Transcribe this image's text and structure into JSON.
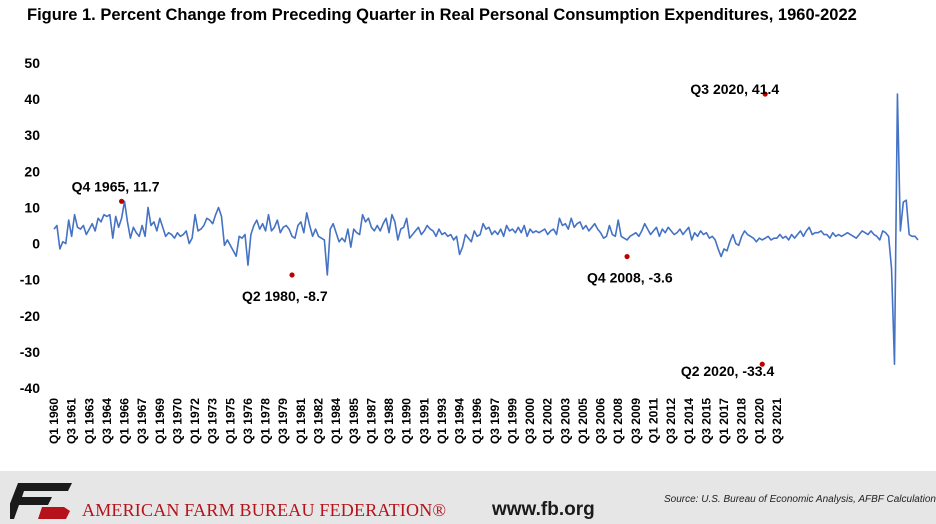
{
  "chart_data": {
    "type": "line",
    "title": "Figure 1. Percent Change from Preceding Quarter in Real Personal Consumption Expenditures, 1960-2022",
    "xlabel": "",
    "ylabel": "",
    "ylim": [
      -40,
      50
    ],
    "yticks": [
      50,
      40,
      30,
      20,
      10,
      0,
      -10,
      -20,
      -30,
      -40
    ],
    "grid": false,
    "legend": "none",
    "x_start": "Q1 1960",
    "x_end": "Q2 2022",
    "x_tick_labels": [
      "Q1 1960",
      "Q3 1961",
      "Q1 1963",
      "Q3 1964",
      "Q1 1966",
      "Q3 1967",
      "Q1 1969",
      "Q3 1970",
      "Q1 1972",
      "Q3 1973",
      "Q1 1975",
      "Q3 1976",
      "Q1 1978",
      "Q3 1979",
      "Q1 1981",
      "Q3 1982",
      "Q1 1984",
      "Q3 1985",
      "Q1 1987",
      "Q3 1988",
      "Q1 1990",
      "Q3 1991",
      "Q1 1993",
      "Q3 1994",
      "Q1 1996",
      "Q3 1997",
      "Q1 1999",
      "Q3 2000",
      "Q1 2002",
      "Q3 2003",
      "Q1 2005",
      "Q3 2006",
      "Q1 2008",
      "Q3 2009",
      "Q1 2011",
      "Q3 2012",
      "Q1 2014",
      "Q3 2015",
      "Q1 2017",
      "Q3 2018",
      "Q1 2020",
      "Q3 2021"
    ],
    "series": [
      {
        "color": "#4472c4",
        "values": [
          4.0,
          5.0,
          -1.5,
          0.5,
          0.0,
          6.5,
          2.0,
          8.0,
          4.5,
          4.0,
          5.0,
          2.5,
          4.0,
          5.5,
          3.5,
          7.0,
          6.0,
          8.0,
          7.5,
          8.0,
          1.5,
          7.5,
          4.5,
          7.0,
          11.7,
          6.0,
          1.5,
          4.5,
          3.0,
          2.0,
          5.0,
          2.0,
          10.0,
          5.0,
          6.0,
          3.5,
          7.0,
          4.5,
          2.0,
          3.0,
          2.5,
          1.5,
          3.0,
          2.0,
          2.5,
          3.5,
          0.0,
          1.5,
          8.0,
          3.5,
          4.0,
          5.0,
          7.0,
          6.5,
          5.5,
          8.0,
          10.0,
          7.5,
          -0.5,
          1.0,
          -0.5,
          -2.0,
          -3.5,
          2.0,
          1.5,
          2.5,
          -6.0,
          2.5,
          5.0,
          6.5,
          4.0,
          5.5,
          3.5,
          8.0,
          3.5,
          4.5,
          6.5,
          3.0,
          4.5,
          5.0,
          4.0,
          2.0,
          1.5,
          5.0,
          6.0,
          3.0,
          8.5,
          5.0,
          2.0,
          4.0,
          2.0,
          1.5,
          1.0,
          -8.7,
          4.0,
          5.5,
          3.0,
          0.5,
          1.5,
          0.5,
          4.0,
          -1.0,
          4.0,
          3.0,
          2.5,
          8.0,
          6.0,
          7.0,
          4.5,
          3.5,
          5.0,
          3.5,
          5.5,
          7.0,
          3.0,
          8.0,
          6.0,
          1.0,
          4.0,
          4.5,
          7.0,
          1.5,
          2.5,
          3.5,
          4.5,
          2.5,
          3.5,
          5.0,
          4.0,
          3.5,
          2.0,
          4.0,
          2.5,
          3.0,
          2.0,
          2.5,
          1.0,
          2.0,
          -3.0,
          -1.0,
          2.5,
          1.5,
          0.5,
          3.5,
          2.0,
          2.5,
          5.5,
          4.0,
          4.5,
          2.5,
          3.5,
          2.5,
          4.0,
          2.0,
          5.0,
          3.5,
          4.0,
          3.0,
          4.5,
          3.0,
          5.0,
          2.0,
          4.0,
          3.0,
          3.5,
          3.0,
          3.5,
          4.0,
          2.5,
          3.5,
          4.0,
          2.5,
          7.0,
          5.0,
          5.5,
          4.0,
          7.0,
          4.5,
          5.5,
          6.0,
          4.0,
          5.0,
          3.5,
          4.5,
          5.5,
          4.0,
          3.0,
          1.5,
          2.0,
          5.0,
          2.5,
          2.0,
          6.5,
          2.0,
          1.5,
          1.0,
          2.0,
          2.5,
          3.0,
          2.0,
          3.5,
          5.5,
          4.0,
          2.5,
          3.5,
          4.5,
          2.0,
          4.0,
          3.0,
          4.5,
          3.5,
          2.5,
          3.0,
          4.0,
          2.5,
          3.5,
          4.5,
          1.0,
          3.0,
          2.0,
          3.5,
          2.5,
          3.0,
          1.5,
          2.0,
          1.0,
          -1.5,
          -3.6,
          -1.5,
          -2.0,
          0.5,
          2.5,
          0.0,
          -0.5,
          2.0,
          3.5,
          2.5,
          2.0,
          1.5,
          0.5,
          1.5,
          1.0,
          1.5,
          2.0,
          1.0,
          1.5,
          1.5,
          2.5,
          1.5,
          2.0,
          1.0,
          2.5,
          1.5,
          2.5,
          3.5,
          2.0,
          3.5,
          4.5,
          2.5,
          3.0,
          3.0,
          3.5,
          2.5,
          2.5,
          1.5,
          3.0,
          2.0,
          2.5,
          2.0,
          2.5,
          3.0,
          2.5,
          2.0,
          1.5,
          2.5,
          3.5,
          3.0,
          2.5,
          3.5,
          2.5,
          2.0,
          1.0,
          3.5,
          3.0,
          2.0,
          -7.0,
          -33.4,
          41.4,
          3.5,
          11.5,
          12.0,
          2.5,
          2.0,
          2.0,
          1.0
        ]
      }
    ],
    "annotations": [
      {
        "label": "Q4 1965, 11.7",
        "x_index": 23,
        "y": 11.7
      },
      {
        "label": "Q2 1980, -8.7",
        "x_index": 81,
        "y": -8.7
      },
      {
        "label": "Q4 2008, -3.6",
        "x_index": 195,
        "y": -3.6
      },
      {
        "label": "Q2 2020, -33.4",
        "x_index": 241,
        "y": -33.4
      },
      {
        "label": "Q3 2020, 41.4",
        "x_index": 242,
        "y": 41.4
      }
    ],
    "marker_color": "#c00000"
  },
  "footer": {
    "org_name": "AMERICAN FARM BUREAU FEDERATION®",
    "website": "www.fb.org",
    "source": "Source: U.S. Bureau of Economic Analysis, AFBF Calculations",
    "logo_text": "FB"
  }
}
